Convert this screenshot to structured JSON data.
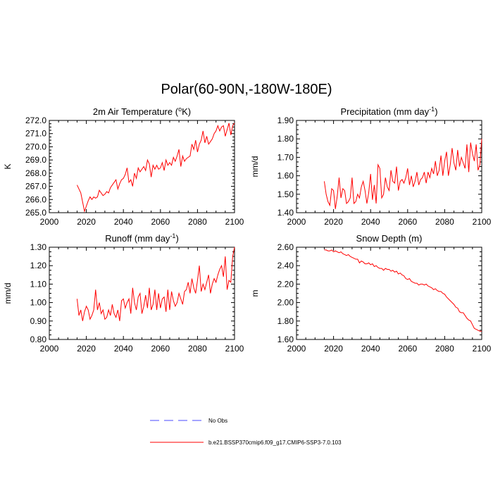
{
  "title": "Polar(60-90N,-180W-180E)",
  "legend": [
    {
      "label": "No Obs",
      "color": "#4a4aff",
      "style": "dashed"
    },
    {
      "label": "b.e21.BSSP370cmip6.f09_g17.CMIP6-SSP3-7.0.103",
      "color": "#ff0000",
      "style": "solid"
    }
  ],
  "chart_data": [
    {
      "type": "line",
      "title": "2m Air Temperature (",
      "title_sup": "o",
      "title_suffix": "K)",
      "ylabel": "K",
      "xlim": [
        2000,
        2100
      ],
      "ylim": [
        265,
        272
      ],
      "xticks": [
        "2000",
        "2020",
        "2040",
        "2060",
        "2080",
        "2100"
      ],
      "yticks": [
        "265.0",
        "266.0",
        "267.0",
        "268.0",
        "269.0",
        "270.0",
        "271.0",
        "272.0"
      ],
      "yticks_values": [
        265,
        266,
        267,
        268,
        269,
        270,
        271,
        272
      ],
      "series": [
        {
          "name": "b.e21.BSSP370cmip6.f09_g17.CMIP6-SSP3-7.0.103",
          "color": "#ff0000",
          "x": [
            2015,
            2016,
            2017,
            2018,
            2019,
            2020,
            2021,
            2022,
            2023,
            2024,
            2025,
            2026,
            2027,
            2028,
            2029,
            2030,
            2031,
            2032,
            2033,
            2034,
            2035,
            2036,
            2037,
            2038,
            2039,
            2040,
            2041,
            2042,
            2043,
            2044,
            2045,
            2046,
            2047,
            2048,
            2049,
            2050,
            2051,
            2052,
            2053,
            2054,
            2055,
            2056,
            2057,
            2058,
            2059,
            2060,
            2061,
            2062,
            2063,
            2064,
            2065,
            2066,
            2067,
            2068,
            2069,
            2070,
            2071,
            2072,
            2073,
            2074,
            2075,
            2076,
            2077,
            2078,
            2079,
            2080,
            2081,
            2082,
            2083,
            2084,
            2085,
            2086,
            2087,
            2088,
            2089,
            2090,
            2091,
            2092,
            2093,
            2094,
            2095,
            2096,
            2097,
            2098,
            2099,
            2100
          ],
          "values": [
            267.1,
            266.8,
            266.5,
            265.8,
            265.1,
            265.5,
            265.9,
            266.2,
            266.0,
            266.2,
            266.1,
            266.2,
            266.7,
            266.5,
            266.3,
            266.4,
            266.6,
            266.5,
            266.9,
            267.1,
            267.3,
            267.5,
            266.8,
            267.2,
            267.5,
            267.6,
            267.9,
            268.4,
            267.3,
            267.5,
            267.0,
            268.0,
            267.6,
            268.4,
            268.1,
            268.3,
            268.5,
            268.2,
            269.0,
            268.7,
            267.7,
            268.6,
            268.3,
            268.6,
            268.3,
            268.4,
            268.8,
            268.2,
            269.0,
            268.6,
            268.8,
            268.6,
            269.2,
            268.9,
            269.3,
            269.8,
            268.5,
            269.3,
            268.9,
            269.1,
            269.2,
            269.3,
            270.2,
            269.8,
            270.5,
            269.6,
            270.2,
            270.5,
            271.2,
            270.3,
            270.8,
            270.2,
            270.4,
            270.6,
            271.0,
            271.2,
            271.6,
            271.2,
            271.5,
            271.6,
            270.8,
            271.3,
            271.8,
            270.9,
            271.6,
            271.8
          ]
        }
      ]
    },
    {
      "type": "line",
      "title": "Precipitation (mm day",
      "title_sup": "-1",
      "title_suffix": ")",
      "ylabel": "mm/d",
      "xlim": [
        2000,
        2100
      ],
      "ylim": [
        1.4,
        1.9
      ],
      "xticks": [
        "2000",
        "2020",
        "2040",
        "2060",
        "2080",
        "2100"
      ],
      "yticks": [
        "1.40",
        "1.50",
        "1.60",
        "1.70",
        "1.80",
        "1.90"
      ],
      "yticks_values": [
        1.4,
        1.5,
        1.6,
        1.7,
        1.8,
        1.9
      ],
      "series": [
        {
          "name": "b.e21.BSSP370cmip6.f09_g17.CMIP6-SSP3-7.0.103",
          "color": "#ff0000",
          "x": [
            2015,
            2016,
            2017,
            2018,
            2019,
            2020,
            2021,
            2022,
            2023,
            2024,
            2025,
            2026,
            2027,
            2028,
            2029,
            2030,
            2031,
            2032,
            2033,
            2034,
            2035,
            2036,
            2037,
            2038,
            2039,
            2040,
            2041,
            2042,
            2043,
            2044,
            2045,
            2046,
            2047,
            2048,
            2049,
            2050,
            2051,
            2052,
            2053,
            2054,
            2055,
            2056,
            2057,
            2058,
            2059,
            2060,
            2061,
            2062,
            2063,
            2064,
            2065,
            2066,
            2067,
            2068,
            2069,
            2070,
            2071,
            2072,
            2073,
            2074,
            2075,
            2076,
            2077,
            2078,
            2079,
            2080,
            2081,
            2082,
            2083,
            2084,
            2085,
            2086,
            2087,
            2088,
            2089,
            2090,
            2091,
            2092,
            2093,
            2094,
            2095,
            2096,
            2097,
            2098,
            2099,
            2100
          ],
          "values": [
            1.57,
            1.5,
            1.46,
            1.44,
            1.53,
            1.52,
            1.42,
            1.49,
            1.59,
            1.48,
            1.53,
            1.52,
            1.45,
            1.46,
            1.48,
            1.59,
            1.45,
            1.46,
            1.5,
            1.48,
            1.54,
            1.57,
            1.52,
            1.45,
            1.51,
            1.61,
            1.47,
            1.55,
            1.45,
            1.66,
            1.64,
            1.48,
            1.5,
            1.59,
            1.54,
            1.52,
            1.63,
            1.57,
            1.56,
            1.65,
            1.52,
            1.57,
            1.58,
            1.56,
            1.59,
            1.64,
            1.55,
            1.6,
            1.54,
            1.57,
            1.62,
            1.55,
            1.58,
            1.59,
            1.62,
            1.56,
            1.62,
            1.59,
            1.64,
            1.61,
            1.68,
            1.6,
            1.63,
            1.71,
            1.6,
            1.68,
            1.73,
            1.6,
            1.66,
            1.75,
            1.67,
            1.63,
            1.74,
            1.65,
            1.7,
            1.67,
            1.64,
            1.77,
            1.62,
            1.78,
            1.72,
            1.68,
            1.77,
            1.63,
            1.66,
            1.8
          ]
        }
      ]
    },
    {
      "type": "line",
      "title": "Runoff (mm day",
      "title_sup": "-1",
      "title_suffix": ")",
      "ylabel": "mm/d",
      "xlim": [
        2000,
        2100
      ],
      "ylim": [
        0.8,
        1.3
      ],
      "xticks": [
        "2000",
        "2020",
        "2040",
        "2060",
        "2080",
        "2100"
      ],
      "yticks": [
        "0.80",
        "0.90",
        "1.00",
        "1.10",
        "1.20",
        "1.30"
      ],
      "yticks_values": [
        0.8,
        0.9,
        1.0,
        1.1,
        1.2,
        1.3
      ],
      "series": [
        {
          "name": "b.e21.BSSP370cmip6.f09_g17.CMIP6-SSP3-7.0.103",
          "color": "#ff0000",
          "x": [
            2015,
            2016,
            2017,
            2018,
            2019,
            2020,
            2021,
            2022,
            2023,
            2024,
            2025,
            2026,
            2027,
            2028,
            2029,
            2030,
            2031,
            2032,
            2033,
            2034,
            2035,
            2036,
            2037,
            2038,
            2039,
            2040,
            2041,
            2042,
            2043,
            2044,
            2045,
            2046,
            2047,
            2048,
            2049,
            2050,
            2051,
            2052,
            2053,
            2054,
            2055,
            2056,
            2057,
            2058,
            2059,
            2060,
            2061,
            2062,
            2063,
            2064,
            2065,
            2066,
            2067,
            2068,
            2069,
            2070,
            2071,
            2072,
            2073,
            2074,
            2075,
            2076,
            2077,
            2078,
            2079,
            2080,
            2081,
            2082,
            2083,
            2084,
            2085,
            2086,
            2087,
            2088,
            2089,
            2090,
            2091,
            2092,
            2093,
            2094,
            2095,
            2096,
            2097,
            2098,
            2099,
            2100
          ],
          "values": [
            1.02,
            0.93,
            0.96,
            0.9,
            0.95,
            0.98,
            0.96,
            0.91,
            0.93,
            0.96,
            1.07,
            0.96,
            1.0,
            0.94,
            0.96,
            0.91,
            0.92,
            0.96,
            0.93,
            0.99,
            0.94,
            0.92,
            0.96,
            0.9,
            1.01,
            1.02,
            0.97,
            1.0,
            1.02,
            0.94,
            1.08,
            1.0,
            0.96,
            1.03,
            1.05,
            0.94,
            0.98,
            1.04,
            0.97,
            1.08,
            0.96,
            0.99,
            1.07,
            0.96,
            1.05,
            0.97,
            1.02,
            1.03,
            0.95,
            1.07,
            0.96,
            1.06,
            1.01,
            0.98,
            1.0,
            1.05,
            1.02,
            0.99,
            1.06,
            1.07,
            1.11,
            1.05,
            1.13,
            1.08,
            1.05,
            1.12,
            1.2,
            1.06,
            1.1,
            1.07,
            1.11,
            1.15,
            1.05,
            1.1,
            1.13,
            1.11,
            1.15,
            1.18,
            1.2,
            1.14,
            1.25,
            1.07,
            1.12,
            1.11,
            1.25,
            1.3
          ]
        }
      ]
    },
    {
      "type": "line",
      "title": "Snow Depth (m)",
      "title_sup": "",
      "title_suffix": "",
      "ylabel": "m",
      "xlim": [
        2000,
        2100
      ],
      "ylim": [
        1.6,
        2.6
      ],
      "xticks": [
        "2000",
        "2020",
        "2040",
        "2060",
        "2080",
        "2100"
      ],
      "yticks": [
        "1.60",
        "1.80",
        "2.00",
        "2.20",
        "2.40",
        "2.60"
      ],
      "yticks_values": [
        1.6,
        1.8,
        2.0,
        2.2,
        2.4,
        2.6
      ],
      "series": [
        {
          "name": "b.e21.BSSP370cmip6.f09_g17.CMIP6-SSP3-7.0.103",
          "color": "#ff0000",
          "x": [
            2015,
            2016,
            2017,
            2018,
            2019,
            2020,
            2021,
            2022,
            2023,
            2024,
            2025,
            2026,
            2027,
            2028,
            2029,
            2030,
            2031,
            2032,
            2033,
            2034,
            2035,
            2036,
            2037,
            2038,
            2039,
            2040,
            2041,
            2042,
            2043,
            2044,
            2045,
            2046,
            2047,
            2048,
            2049,
            2050,
            2051,
            2052,
            2053,
            2054,
            2055,
            2056,
            2057,
            2058,
            2059,
            2060,
            2061,
            2062,
            2063,
            2064,
            2065,
            2066,
            2067,
            2068,
            2069,
            2070,
            2071,
            2072,
            2073,
            2074,
            2075,
            2076,
            2077,
            2078,
            2079,
            2080,
            2081,
            2082,
            2083,
            2084,
            2085,
            2086,
            2087,
            2088,
            2089,
            2090,
            2091,
            2092,
            2093,
            2094,
            2095,
            2096,
            2097,
            2098,
            2099,
            2100
          ],
          "values": [
            2.57,
            2.57,
            2.56,
            2.56,
            2.57,
            2.55,
            2.56,
            2.55,
            2.54,
            2.55,
            2.53,
            2.52,
            2.51,
            2.52,
            2.5,
            2.49,
            2.48,
            2.47,
            2.47,
            2.43,
            2.45,
            2.44,
            2.42,
            2.42,
            2.43,
            2.41,
            2.42,
            2.39,
            2.4,
            2.38,
            2.37,
            2.37,
            2.35,
            2.37,
            2.36,
            2.36,
            2.34,
            2.35,
            2.33,
            2.34,
            2.31,
            2.32,
            2.3,
            2.29,
            2.26,
            2.25,
            2.26,
            2.23,
            2.22,
            2.21,
            2.21,
            2.19,
            2.2,
            2.2,
            2.19,
            2.2,
            2.18,
            2.17,
            2.16,
            2.14,
            2.15,
            2.13,
            2.12,
            2.12,
            2.1,
            2.09,
            2.06,
            2.04,
            2.02,
            2.0,
            1.98,
            1.95,
            1.94,
            1.9,
            1.89,
            1.89,
            1.86,
            1.83,
            1.81,
            1.8,
            1.76,
            1.72,
            1.71,
            1.7,
            1.69,
            1.69
          ]
        }
      ]
    }
  ]
}
